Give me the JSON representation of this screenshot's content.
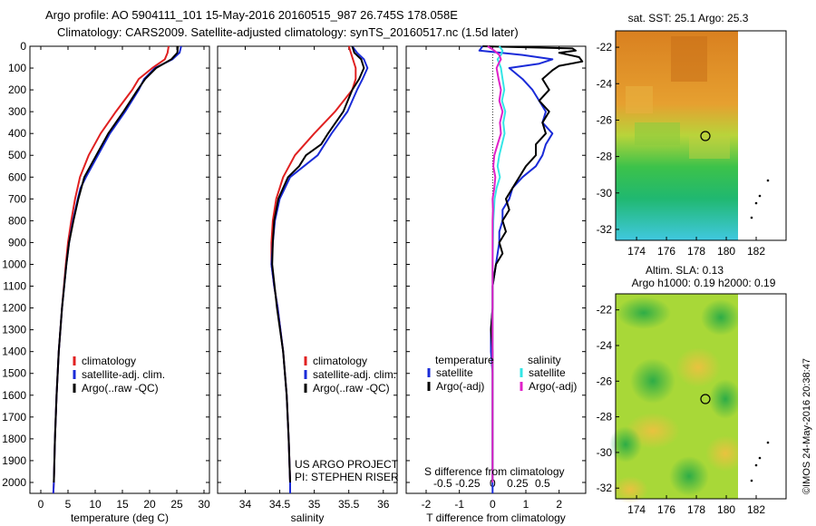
{
  "header": {
    "title_line1": "Argo profile: AO 5904111_101 15-May-2016 20160515_987 26.745S 178.058E",
    "title_line2": "Climatology: CARS2009. Satellite-adjusted climatology: synTS_20160517.nc (1.5d later)"
  },
  "colors": {
    "climatology": "#e02020",
    "satellite": "#1a2bd8",
    "argo": "#000000",
    "satellite_salinity": "#33e6e6",
    "argo_salinity": "#e020c8"
  },
  "legend_profile": {
    "items": [
      {
        "label": "climatology",
        "color": "#e02020"
      },
      {
        "label": "satellite-adj. clim.",
        "color": "#1a2bd8"
      },
      {
        "label": "Argo(..raw -QC)",
        "color": "#000000"
      }
    ]
  },
  "legend_diff": {
    "temperature_header": "temperature",
    "salinity_header": "salinity",
    "items": [
      {
        "label": "satellite",
        "color": "#1a2bd8"
      },
      {
        "label": "Argo(-adj)",
        "color": "#000000"
      },
      {
        "label": "satellite",
        "color": "#33e6e6"
      },
      {
        "label": "Argo(-adj)",
        "color": "#e020c8"
      }
    ]
  },
  "annotations": {
    "project": "US ARGO PROJECT",
    "pi": "PI: STEPHEN RISER",
    "s_diff_label": "S difference from climatology",
    "credit": "©IMOS 24-May-2016 20:38:47"
  },
  "maps": {
    "sst": {
      "title": "sat. SST: 25.1 Argo: 25.3",
      "xticks": [
        "174",
        "176",
        "178",
        "180",
        "182"
      ],
      "yticks": [
        "-22",
        "-24",
        "-26",
        "-28",
        "-30",
        "-32"
      ]
    },
    "sla": {
      "title_line1": "Altim. SLA: 0.13",
      "title_line2": "Argo h1000: 0.19 h2000: 0.19",
      "xticks": [
        "174",
        "176",
        "178",
        "180",
        "182"
      ],
      "yticks": [
        "-22",
        "-24",
        "-26",
        "-28",
        "-30",
        "-32"
      ]
    }
  },
  "chart_data": [
    {
      "type": "line",
      "xlabel": "temperature (deg C)",
      "ylabel": "",
      "xlim": [
        -2,
        31
      ],
      "ylim": [
        2050,
        0
      ],
      "xticks": [
        0,
        5,
        10,
        15,
        20,
        25,
        30
      ],
      "yticks": [
        0,
        100,
        200,
        300,
        400,
        500,
        600,
        700,
        800,
        900,
        1000,
        1100,
        1200,
        1300,
        1400,
        1500,
        1600,
        1700,
        1800,
        1900,
        2000
      ],
      "series": [
        {
          "name": "climatology",
          "color": "#e02020",
          "depth": [
            0,
            30,
            60,
            100,
            150,
            200,
            300,
            400,
            500,
            600,
            700,
            800,
            900,
            1000,
            1200,
            1400,
            1600,
            1800,
            2000,
            2050
          ],
          "values": [
            23.5,
            23.3,
            22.8,
            20.5,
            18.0,
            16.8,
            13.8,
            11.0,
            8.8,
            7.2,
            6.3,
            5.6,
            5.0,
            4.6,
            3.9,
            3.3,
            2.9,
            2.6,
            2.4,
            2.3
          ]
        },
        {
          "name": "satellite-adj. clim.",
          "color": "#1a2bd8",
          "depth": [
            0,
            30,
            60,
            100,
            150,
            200,
            300,
            400,
            500,
            600,
            650,
            700,
            800,
            900,
            1000,
            1200,
            1400,
            1600,
            1800,
            2000,
            2050
          ],
          "values": [
            25.8,
            25.5,
            24.2,
            21.0,
            19.0,
            18.0,
            15.5,
            12.7,
            10.5,
            8.3,
            7.3,
            6.8,
            5.9,
            5.2,
            4.7,
            3.9,
            3.3,
            2.9,
            2.6,
            2.4,
            2.3
          ]
        },
        {
          "name": "Argo(..raw -QC)",
          "color": "#000000",
          "depth": [
            0,
            30,
            60,
            100,
            150,
            200,
            300,
            400,
            500,
            600,
            700,
            800,
            900,
            1000,
            1200,
            1400,
            1600,
            1800,
            2000
          ],
          "values": [
            25.2,
            25.1,
            24.0,
            21.2,
            19.2,
            17.8,
            15.2,
            12.4,
            10.2,
            8.0,
            6.9,
            6.0,
            5.2,
            4.7,
            3.9,
            3.3,
            2.9,
            2.6,
            2.4
          ]
        }
      ]
    },
    {
      "type": "line",
      "xlabel": "salinity",
      "ylabel": "",
      "xlim": [
        33.6,
        36.2
      ],
      "ylim": [
        2050,
        0
      ],
      "xticks": [
        34,
        34.5,
        35,
        35.5,
        36
      ],
      "series": [
        {
          "name": "climatology",
          "color": "#e02020",
          "depth": [
            0,
            50,
            100,
            150,
            200,
            300,
            400,
            500,
            600,
            700,
            800,
            900,
            1000,
            1100,
            1200,
            1400,
            1600,
            1800,
            2000,
            2050
          ],
          "values": [
            35.5,
            35.55,
            35.6,
            35.6,
            35.55,
            35.3,
            35.0,
            34.72,
            34.55,
            34.45,
            34.4,
            34.38,
            34.38,
            34.42,
            34.47,
            34.55,
            34.6,
            34.63,
            34.65,
            34.65
          ]
        },
        {
          "name": "satellite-adj. clim.",
          "color": "#1a2bd8",
          "depth": [
            0,
            30,
            60,
            100,
            150,
            200,
            300,
            400,
            450,
            500,
            600,
            700,
            800,
            900,
            1000,
            1100,
            1200,
            1400,
            1600,
            1800,
            2000,
            2050
          ],
          "values": [
            35.55,
            35.62,
            35.72,
            35.77,
            35.7,
            35.62,
            35.48,
            35.25,
            35.15,
            35.05,
            34.65,
            34.5,
            34.43,
            34.4,
            34.38,
            34.42,
            34.47,
            34.55,
            34.6,
            34.63,
            34.65,
            34.65
          ]
        },
        {
          "name": "Argo(..raw -QC)",
          "color": "#000000",
          "depth": [
            0,
            30,
            60,
            100,
            150,
            200,
            300,
            400,
            450,
            500,
            550,
            600,
            650,
            700,
            800,
            900,
            1000,
            1200,
            1400,
            1600,
            1800,
            2000
          ],
          "values": [
            35.55,
            35.58,
            35.68,
            35.72,
            35.65,
            35.55,
            35.42,
            35.2,
            35.1,
            34.88,
            34.78,
            34.62,
            34.55,
            34.48,
            34.42,
            34.4,
            34.39,
            34.46,
            34.55,
            34.6,
            34.63,
            34.65
          ]
        }
      ]
    },
    {
      "type": "line",
      "xlabel": "T difference from climatology",
      "ylabel": "",
      "xlim": [
        -2.6,
        2.8
      ],
      "ylim": [
        2050,
        0
      ],
      "xticks": [
        -2,
        -1,
        0,
        1,
        2
      ],
      "secondary_xlabel": "S difference from climatology",
      "secondary_xticks": [
        "-0.5",
        "-0.25",
        "0",
        "0.25",
        "0.5"
      ],
      "series": [
        {
          "name": "satellite",
          "variable": "temperature",
          "color": "#1a2bd8",
          "depth": [
            0,
            20,
            40,
            60,
            80,
            100,
            150,
            200,
            250,
            300,
            350,
            400,
            450,
            500,
            550,
            600,
            650,
            700,
            750,
            800,
            850,
            900,
            1000,
            1100,
            1200,
            1300,
            1400,
            1500,
            1600,
            1800,
            2000,
            2050
          ],
          "values": [
            -0.3,
            -0.4,
            0.9,
            1.8,
            1.4,
            0.5,
            0.9,
            1.2,
            1.4,
            1.6,
            1.5,
            1.8,
            1.6,
            1.5,
            1.3,
            0.9,
            0.6,
            0.5,
            0.3,
            0.3,
            0.2,
            0.2,
            0.1,
            0.0,
            0.0,
            -0.05,
            -0.05,
            0.0,
            0.0,
            0.0,
            0.0,
            0.0
          ]
        },
        {
          "name": "Argo(-adj)",
          "variable": "temperature",
          "color": "#000000",
          "depth": [
            0,
            10,
            20,
            30,
            50,
            70,
            90,
            110,
            150,
            200,
            250,
            300,
            350,
            400,
            450,
            500,
            550,
            600,
            650,
            700,
            750,
            800,
            850,
            900,
            950,
            1000,
            1100,
            1200,
            1300,
            1400,
            1500,
            1600,
            1800,
            2000
          ],
          "values": [
            -0.3,
            2.4,
            2.5,
            2.0,
            2.6,
            2.7,
            2.0,
            1.8,
            1.5,
            1.7,
            1.4,
            1.7,
            1.5,
            1.6,
            1.3,
            1.3,
            1.0,
            0.8,
            0.6,
            0.4,
            0.5,
            0.3,
            0.4,
            0.2,
            0.3,
            0.1,
            0.0,
            0.0,
            -0.05,
            0.0,
            0.0,
            0.0,
            0.0,
            0.0
          ]
        },
        {
          "name": "satellite",
          "variable": "salinity",
          "color": "#33e6e6",
          "depth": [
            0,
            20,
            40,
            60,
            80,
            100,
            150,
            200,
            250,
            300,
            350,
            400,
            450,
            500,
            550,
            600,
            650,
            700,
            750,
            800,
            900,
            1000,
            1200,
            1400,
            1600,
            1800,
            2000
          ],
          "values": [
            0.2,
            0.3,
            0.25,
            0.15,
            0.2,
            0.25,
            0.3,
            0.35,
            0.28,
            0.38,
            0.32,
            0.36,
            0.28,
            0.2,
            0.15,
            0.22,
            0.12,
            0.06,
            0.04,
            0.02,
            0.01,
            0.0,
            0.0,
            0.0,
            0.0,
            0.0,
            0.0
          ]
        },
        {
          "name": "Argo(-adj)",
          "variable": "salinity",
          "color": "#e020c8",
          "depth": [
            0,
            20,
            40,
            60,
            80,
            100,
            150,
            200,
            250,
            300,
            350,
            400,
            450,
            500,
            550,
            600,
            650,
            700,
            750,
            800,
            900,
            1000,
            1200,
            1400,
            1600,
            1800,
            2000
          ],
          "values": [
            -0.15,
            0.05,
            0.2,
            0.25,
            0.18,
            0.12,
            0.18,
            0.25,
            0.2,
            0.3,
            0.22,
            0.25,
            0.15,
            0.05,
            0.02,
            0.08,
            0.05,
            0.0,
            0.01,
            0.0,
            0.0,
            0.0,
            0.0,
            0.0,
            0.0,
            0.0,
            0.0
          ]
        }
      ]
    }
  ]
}
